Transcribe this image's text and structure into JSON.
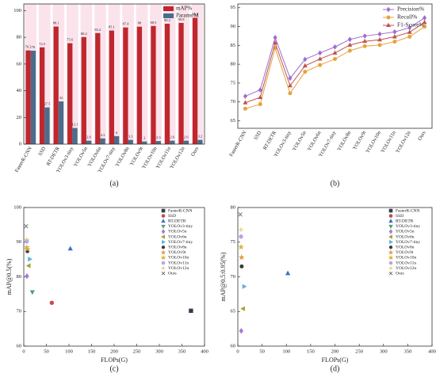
{
  "chart_data": [
    {
      "type": "bar",
      "label": "(a)",
      "categories": [
        "FasterR-CNN",
        "SSD",
        "RT-DETR",
        "YOLOv3-tiny",
        "YOLOv5n",
        "YOLOv6n",
        "YOLOv7-tiny",
        "YOLOv8n",
        "YOLOv9t",
        "YOLOv10n",
        "YOLOv11n",
        "YOLOv12n",
        "Ours"
      ],
      "series": [
        {
          "name": "mAP%",
          "color": "#c0272d",
          "values": [
            70.2,
            72.5,
            88.1,
            75.6,
            80.2,
            83.2,
            85.1,
            87.4,
            88.0,
            88.5,
            90.2,
            90.8,
            94.6
          ]
        },
        {
          "name": "Params/M",
          "color": "#4a6d8c",
          "values": [
            70.0,
            27.5,
            32.0,
            12.1,
            2.6,
            4.3,
            6.0,
            3.2,
            2.0,
            2.3,
            2.6,
            2.6,
            3.2
          ]
        }
      ],
      "ylim": [
        0,
        105
      ],
      "yticks": [
        0,
        20,
        40,
        60,
        80,
        100
      ],
      "legend": "top-right"
    },
    {
      "type": "line",
      "label": "(b)",
      "categories": [
        "FasterR-CNN",
        "SSD",
        "RT-DETR",
        "YOLOv3-tiny",
        "YOLOv5n",
        "YOLOv6n",
        "YOLOv7-tiny",
        "YOLOv8n",
        "YOLOv9t",
        "YOLOv10n",
        "YOLOv11n",
        "YOLOv12n",
        "Ours"
      ],
      "series": [
        {
          "name": "Precision%",
          "color": "#9b6fd0",
          "marker": "diamond",
          "values": [
            71.5,
            73.2,
            87.1,
            76.3,
            81.3,
            83.0,
            84.6,
            86.6,
            87.5,
            88.0,
            88.6,
            89.7,
            92.3
          ]
        },
        {
          "name": "Recall%",
          "color": "#e6a23c",
          "marker": "circle",
          "values": [
            68.2,
            69.4,
            84.3,
            72.3,
            78.0,
            79.8,
            81.4,
            83.6,
            84.8,
            85.1,
            86.0,
            87.3,
            90.0
          ]
        },
        {
          "name": "F1-Score%",
          "color": "#c0504d",
          "marker": "triangle-up",
          "values": [
            69.8,
            71.2,
            85.7,
            74.3,
            79.6,
            81.4,
            83.0,
            85.1,
            86.1,
            86.5,
            87.3,
            88.5,
            91.1
          ]
        }
      ],
      "ylim": [
        63,
        96
      ],
      "yticks": [
        65,
        70,
        75,
        80,
        85,
        90,
        95
      ],
      "legend": "top-right"
    },
    {
      "type": "scatter",
      "label": "(c)",
      "xlabel": "FLOPs(G)",
      "ylabel": "mAP@0.5(%)",
      "series": [
        {
          "name": "FasterR-CNN",
          "color": "#3a3a4a",
          "marker": "square",
          "x": [
            370
          ],
          "values": [
            70.2
          ]
        },
        {
          "name": "SSD",
          "color": "#c0504d",
          "marker": "circle",
          "x": [
            62
          ],
          "values": [
            72.5
          ]
        },
        {
          "name": "RT-DETR",
          "color": "#3f6fc8",
          "marker": "triangle-up",
          "x": [
            103
          ],
          "values": [
            88.1
          ]
        },
        {
          "name": "YOLOv3-tiny",
          "color": "#4aa36a",
          "marker": "triangle-down",
          "x": [
            19
          ],
          "values": [
            75.6
          ]
        },
        {
          "name": "YOLOv5n",
          "color": "#a77ad6",
          "marker": "diamond",
          "x": [
            7
          ],
          "values": [
            80.2
          ]
        },
        {
          "name": "YOLOv6n",
          "color": "#a8a23a",
          "marker": "triangle-left",
          "x": [
            11
          ],
          "values": [
            83.2
          ]
        },
        {
          "name": "YOLOv7-tiny",
          "color": "#5fb0e0",
          "marker": "triangle-right",
          "x": [
            13
          ],
          "values": [
            85.1
          ]
        },
        {
          "name": "YOLOv8n",
          "color": "#3a3a3a",
          "marker": "hexagon",
          "x": [
            8
          ],
          "values": [
            87.4
          ]
        },
        {
          "name": "YOLOv9t",
          "color": "#e39a3a",
          "marker": "star",
          "x": [
            7.7
          ],
          "values": [
            88.0
          ]
        },
        {
          "name": "YOLOv10n",
          "color": "#d9b23a",
          "marker": "star",
          "x": [
            6.7
          ],
          "values": [
            88.5
          ]
        },
        {
          "name": "YOLOv11n",
          "color": "#b3a6e6",
          "marker": "circle",
          "x": [
            6.5
          ],
          "values": [
            90.2
          ]
        },
        {
          "name": "YOLOv12n",
          "color": "#e8c060",
          "marker": "plus",
          "x": [
            6.5
          ],
          "values": [
            90.8
          ]
        },
        {
          "name": "Ours",
          "color": "#666666",
          "marker": "x",
          "x": [
            5
          ],
          "values": [
            94.6
          ]
        }
      ],
      "xlim": [
        0,
        400
      ],
      "xticks": [
        0,
        50,
        100,
        150,
        200,
        250,
        300,
        350,
        400
      ],
      "ylim": [
        60,
        100
      ],
      "yticks": [
        60,
        70,
        80,
        90,
        100
      ],
      "legend": "top-right"
    },
    {
      "type": "scatter",
      "label": "(d)",
      "xlabel": "FLOPs(G)",
      "ylabel": "mAP@0.5:0.95(%)",
      "series": [
        {
          "name": "FasterR-CNN",
          "color": "#3a3a4a",
          "marker": "square",
          "x": [
            370
          ],
          "values": [
            null
          ]
        },
        {
          "name": "SSD",
          "color": "#c0504d",
          "marker": "circle",
          "x": [
            62
          ],
          "values": [
            null
          ]
        },
        {
          "name": "RT-DETR",
          "color": "#3f6fc8",
          "marker": "triangle-up",
          "x": [
            103
          ],
          "values": [
            70.5
          ]
        },
        {
          "name": "YOLOv3-tiny",
          "color": "#4aa36a",
          "marker": "triangle-down",
          "x": [
            19
          ],
          "values": [
            null
          ]
        },
        {
          "name": "YOLOv5n",
          "color": "#a77ad6",
          "marker": "diamond",
          "x": [
            7
          ],
          "values": [
            62.2
          ]
        },
        {
          "name": "YOLOv6n",
          "color": "#a8a23a",
          "marker": "triangle-left",
          "x": [
            11
          ],
          "values": [
            65.4
          ]
        },
        {
          "name": "YOLOv7-tiny",
          "color": "#5fb0e0",
          "marker": "triangle-right",
          "x": [
            13
          ],
          "values": [
            68.6
          ]
        },
        {
          "name": "YOLOv8n",
          "color": "#3a3a3a",
          "marker": "hexagon",
          "x": [
            8
          ],
          "values": [
            71.5
          ]
        },
        {
          "name": "YOLOv9t",
          "color": "#e39a3a",
          "marker": "star",
          "x": [
            7.7
          ],
          "values": [
            72.8
          ]
        },
        {
          "name": "YOLOv10n",
          "color": "#d9b23a",
          "marker": "star",
          "x": [
            6.7
          ],
          "values": [
            74.3
          ]
        },
        {
          "name": "YOLOv11n",
          "color": "#b3a6e6",
          "marker": "circle",
          "x": [
            6.5
          ],
          "values": [
            75.8
          ]
        },
        {
          "name": "YOLOv12n",
          "color": "#e8c060",
          "marker": "plus",
          "x": [
            6.5
          ],
          "values": [
            76.8
          ]
        },
        {
          "name": "Ours",
          "color": "#666666",
          "marker": "x",
          "x": [
            5
          ],
          "values": [
            79.0
          ]
        }
      ],
      "xlim": [
        0,
        400
      ],
      "xticks": [
        0,
        50,
        100,
        150,
        200,
        250,
        300,
        350,
        400
      ],
      "ylim": [
        60,
        80
      ],
      "yticks": [
        60,
        65,
        70,
        75,
        80
      ],
      "legend": "top-right"
    }
  ]
}
